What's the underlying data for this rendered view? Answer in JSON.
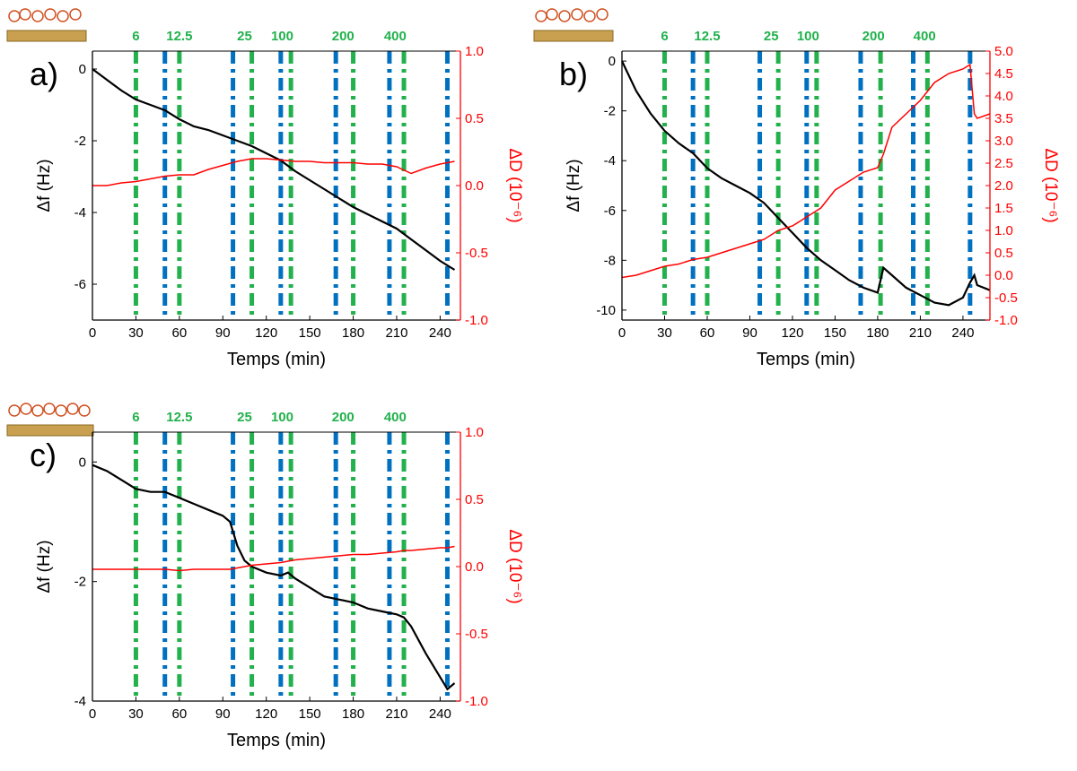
{
  "chart_data": [
    {
      "type": "line",
      "panel_label": "a)",
      "x_label": "Temps (min)",
      "y_label": "Δf (Hz)",
      "y2_label": "ΔD (10⁻⁶)",
      "xlim": [
        0,
        254
      ],
      "xticks": [
        0,
        30,
        60,
        90,
        120,
        150,
        180,
        210,
        240
      ],
      "ylim": [
        -7,
        0.5
      ],
      "yticks": [
        -6,
        -4,
        -2,
        0
      ],
      "y2lim": [
        -1,
        1
      ],
      "y2ticks": [
        {
          "value": -1,
          "label": "-1.0"
        },
        {
          "value": -0.5,
          "label": "-0.5"
        },
        {
          "value": 0,
          "label": "0.0"
        },
        {
          "value": 0.5,
          "label": "0.5"
        },
        {
          "value": 1,
          "label": "1.0"
        }
      ],
      "x": [
        0,
        10,
        20,
        30,
        40,
        50,
        60,
        70,
        80,
        90,
        100,
        110,
        120,
        130,
        140,
        150,
        160,
        170,
        180,
        190,
        200,
        210,
        220,
        230,
        240,
        250
      ],
      "series": [
        {
          "color": "#000000",
          "values": [
            0,
            -0.3,
            -0.6,
            -0.85,
            -1.0,
            -1.15,
            -1.4,
            -1.6,
            -1.7,
            -1.85,
            -2.0,
            -2.15,
            -2.35,
            -2.55,
            -2.85,
            -3.1,
            -3.35,
            -3.6,
            -3.85,
            -4.05,
            -4.25,
            -4.45,
            -4.75,
            -5.05,
            -5.35,
            -5.6
          ]
        },
        {
          "color": "#ff0000",
          "axis": "y2",
          "values": [
            0,
            0,
            0.02,
            0.03,
            0.05,
            0.07,
            0.08,
            0.08,
            0.12,
            0.15,
            0.18,
            0.2,
            0.2,
            0.19,
            0.18,
            0.18,
            0.17,
            0.17,
            0.17,
            0.16,
            0.16,
            0.14,
            0.09,
            0.13,
            0.16,
            0.18
          ]
        }
      ],
      "vlines": [
        {
          "x": 30,
          "color": "#22b14c"
        },
        {
          "x": 50,
          "color": "#0070c0"
        },
        {
          "x": 60,
          "color": "#22b14c"
        },
        {
          "x": 97,
          "color": "#0070c0"
        },
        {
          "x": 110,
          "color": "#22b14c"
        },
        {
          "x": 130,
          "color": "#0070c0"
        },
        {
          "x": 137,
          "color": "#22b14c"
        },
        {
          "x": 168,
          "color": "#0070c0"
        },
        {
          "x": 180,
          "color": "#22b14c"
        },
        {
          "x": 205,
          "color": "#0070c0"
        },
        {
          "x": 215,
          "color": "#22b14c"
        },
        {
          "x": 245,
          "color": "#0070c0"
        }
      ],
      "annotations": [
        {
          "text": "6",
          "x": 30
        },
        {
          "text": "12.5",
          "x": 60
        },
        {
          "text": "25",
          "x": 105
        },
        {
          "text": "100",
          "x": 131
        },
        {
          "text": "200",
          "x": 173
        },
        {
          "text": "400",
          "x": 209
        }
      ]
    },
    {
      "type": "line",
      "panel_label": "b)",
      "x_label": "Temps (min)",
      "y_label": "Δf (Hz)",
      "y2_label": "ΔD (10⁻⁶)",
      "xlim": [
        0,
        259
      ],
      "xticks": [
        0,
        30,
        60,
        90,
        120,
        150,
        180,
        210,
        240
      ],
      "ylim": [
        -10.4,
        0.4
      ],
      "yticks": [
        -10,
        -8,
        -6,
        -4,
        -2,
        0
      ],
      "y2lim": [
        -1,
        5
      ],
      "y2ticks": [
        {
          "value": -1,
          "label": "-1.0"
        },
        {
          "value": -0.5,
          "label": "-0.5"
        },
        {
          "value": 0,
          "label": "0.0"
        },
        {
          "value": 0.5,
          "label": "0.5"
        },
        {
          "value": 1,
          "label": "1.0"
        },
        {
          "value": 1.5,
          "label": "1.5"
        },
        {
          "value": 2,
          "label": "2.0"
        },
        {
          "value": 2.5,
          "label": "2.5"
        },
        {
          "value": 3,
          "label": "3.0"
        },
        {
          "value": 3.5,
          "label": "3.5"
        },
        {
          "value": 4,
          "label": "4.0"
        },
        {
          "value": 4.5,
          "label": "4.5"
        },
        {
          "value": 5,
          "label": "5.0"
        }
      ],
      "x": [
        0,
        10,
        20,
        30,
        40,
        50,
        60,
        70,
        80,
        90,
        100,
        110,
        120,
        130,
        140,
        150,
        160,
        170,
        180,
        184,
        190,
        200,
        210,
        220,
        230,
        240,
        245,
        248,
        250,
        259
      ],
      "series": [
        {
          "color": "#000000",
          "values": [
            0,
            -1.2,
            -2.1,
            -2.8,
            -3.3,
            -3.7,
            -4.3,
            -4.7,
            -5.0,
            -5.3,
            -5.7,
            -6.3,
            -6.9,
            -7.5,
            -8.0,
            -8.4,
            -8.8,
            -9.1,
            -9.3,
            -8.3,
            -8.6,
            -9.1,
            -9.4,
            -9.7,
            -9.8,
            -9.5,
            -8.9,
            -8.6,
            -9.0,
            -9.2
          ]
        },
        {
          "color": "#ff0000",
          "axis": "y2",
          "values": [
            -0.05,
            0,
            0.1,
            0.2,
            0.25,
            0.35,
            0.4,
            0.5,
            0.6,
            0.7,
            0.8,
            1.0,
            1.1,
            1.3,
            1.5,
            1.9,
            2.1,
            2.3,
            2.4,
            2.7,
            3.3,
            3.6,
            3.9,
            4.3,
            4.5,
            4.6,
            4.7,
            3.6,
            3.5,
            3.6
          ]
        }
      ],
      "vlines": [
        {
          "x": 30,
          "color": "#22b14c"
        },
        {
          "x": 50,
          "color": "#0070c0"
        },
        {
          "x": 60,
          "color": "#22b14c"
        },
        {
          "x": 97,
          "color": "#0070c0"
        },
        {
          "x": 110,
          "color": "#22b14c"
        },
        {
          "x": 130,
          "color": "#0070c0"
        },
        {
          "x": 137,
          "color": "#22b14c"
        },
        {
          "x": 168,
          "color": "#0070c0"
        },
        {
          "x": 182,
          "color": "#22b14c"
        },
        {
          "x": 205,
          "color": "#0070c0"
        },
        {
          "x": 215,
          "color": "#22b14c"
        },
        {
          "x": 245,
          "color": "#0070c0"
        }
      ],
      "annotations": [
        {
          "text": "6",
          "x": 30
        },
        {
          "text": "12.5",
          "x": 60
        },
        {
          "text": "25",
          "x": 105
        },
        {
          "text": "100",
          "x": 131
        },
        {
          "text": "200",
          "x": 177
        },
        {
          "text": "400",
          "x": 213
        }
      ]
    },
    {
      "type": "line",
      "panel_label": "c)",
      "x_label": "Temps (min)",
      "y_label": "Δf (Hz)",
      "y2_label": "ΔD (10⁻⁶)",
      "xlim": [
        0,
        254
      ],
      "xticks": [
        0,
        30,
        60,
        90,
        120,
        150,
        180,
        210,
        240
      ],
      "ylim": [
        -4,
        0.5
      ],
      "yticks": [
        -4,
        -2,
        0
      ],
      "y2lim": [
        -1,
        1
      ],
      "y2ticks": [
        {
          "value": -1,
          "label": "-1.0"
        },
        {
          "value": -0.5,
          "label": "-0.5"
        },
        {
          "value": 0,
          "label": "0.0"
        },
        {
          "value": 0.5,
          "label": "0.5"
        },
        {
          "value": 1,
          "label": "1.0"
        }
      ],
      "x": [
        0,
        10,
        20,
        30,
        40,
        50,
        60,
        70,
        80,
        90,
        95,
        100,
        105,
        110,
        120,
        130,
        135,
        140,
        150,
        160,
        170,
        180,
        190,
        200,
        210,
        215,
        220,
        230,
        240,
        245,
        250
      ],
      "series": [
        {
          "color": "#000000",
          "values": [
            -0.05,
            -0.15,
            -0.3,
            -0.45,
            -0.5,
            -0.5,
            -0.6,
            -0.7,
            -0.8,
            -0.9,
            -1.0,
            -1.4,
            -1.65,
            -1.75,
            -1.85,
            -1.9,
            -1.85,
            -1.95,
            -2.1,
            -2.25,
            -2.3,
            -2.35,
            -2.45,
            -2.5,
            -2.55,
            -2.6,
            -2.75,
            -3.2,
            -3.6,
            -3.8,
            -3.7
          ]
        },
        {
          "color": "#ff0000",
          "axis": "y2",
          "values": [
            -0.02,
            -0.02,
            -0.02,
            -0.02,
            -0.02,
            -0.02,
            -0.03,
            -0.02,
            -0.02,
            -0.02,
            -0.02,
            -0.01,
            0,
            0.01,
            0.02,
            0.03,
            0.04,
            0.05,
            0.06,
            0.07,
            0.08,
            0.09,
            0.09,
            0.1,
            0.11,
            0.12,
            0.12,
            0.13,
            0.14,
            0.14,
            0.15
          ]
        }
      ],
      "vlines": [
        {
          "x": 30,
          "color": "#22b14c"
        },
        {
          "x": 50,
          "color": "#0070c0"
        },
        {
          "x": 60,
          "color": "#22b14c"
        },
        {
          "x": 97,
          "color": "#0070c0"
        },
        {
          "x": 110,
          "color": "#22b14c"
        },
        {
          "x": 130,
          "color": "#0070c0"
        },
        {
          "x": 137,
          "color": "#22b14c"
        },
        {
          "x": 168,
          "color": "#0070c0"
        },
        {
          "x": 180,
          "color": "#22b14c"
        },
        {
          "x": 205,
          "color": "#0070c0"
        },
        {
          "x": 215,
          "color": "#22b14c"
        },
        {
          "x": 245,
          "color": "#0070c0"
        }
      ],
      "annotations": [
        {
          "text": "6",
          "x": 30
        },
        {
          "text": "12.5",
          "x": 60
        },
        {
          "text": "25",
          "x": 105
        },
        {
          "text": "100",
          "x": 131
        },
        {
          "text": "200",
          "x": 173
        },
        {
          "text": "400",
          "x": 209
        }
      ]
    }
  ]
}
